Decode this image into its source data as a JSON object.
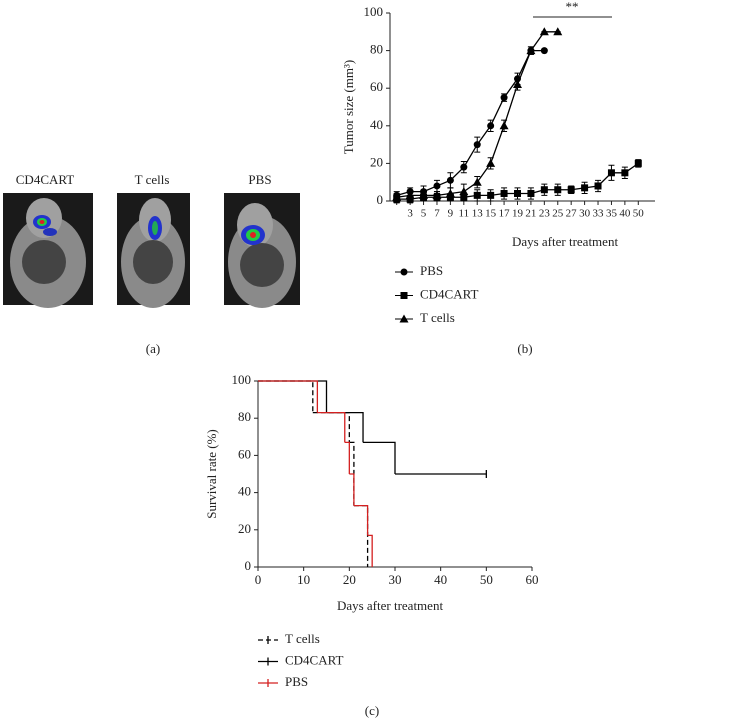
{
  "images": {
    "labels": [
      "CD4CART",
      "T cells",
      "PBS"
    ]
  },
  "panel_labels": [
    "(a)",
    "(b)",
    "(c)"
  ],
  "chart_data": [
    {
      "type": "line",
      "y_label": "Tumor size (mm³)",
      "x_label": "Days after treatment",
      "annotation": "**",
      "categories": [
        null,
        "3",
        "5",
        "7",
        "9",
        "11",
        "13",
        "15",
        "17",
        "19",
        "21",
        "23",
        "25",
        "27",
        "30",
        "33",
        "35",
        "40",
        "50"
      ],
      "ylim": [
        0,
        100
      ],
      "yticks": [
        0,
        20,
        40,
        60,
        80,
        100
      ],
      "series": [
        {
          "name": "PBS",
          "marker": "circle",
          "color": "#000000",
          "values": [
            3,
            5,
            5,
            8,
            11,
            18,
            30,
            40,
            55,
            65,
            80,
            80,
            null,
            null,
            null,
            null,
            null,
            null,
            null
          ],
          "errors": [
            2,
            2,
            3,
            3,
            4,
            3,
            4,
            3,
            2,
            3,
            2,
            0,
            null,
            null,
            null,
            null,
            null,
            null,
            null
          ]
        },
        {
          "name": "CD4CART",
          "marker": "square",
          "color": "#000000",
          "values": [
            1,
            1,
            2,
            2,
            2,
            2,
            3,
            3,
            4,
            4,
            4,
            6,
            6,
            6,
            7,
            8,
            15,
            15,
            20
          ],
          "errors": [
            2,
            2,
            2,
            2,
            2,
            2,
            3,
            3,
            3,
            3,
            3,
            3,
            3,
            2,
            3,
            3,
            4,
            3,
            2
          ]
        },
        {
          "name": "T cells",
          "marker": "triangle",
          "color": "#000000",
          "values": [
            2,
            3,
            3,
            3,
            4,
            5,
            10,
            20,
            40,
            62,
            80,
            90,
            90,
            null,
            null,
            null,
            null,
            null,
            null
          ],
          "errors": [
            2,
            2,
            2,
            2,
            3,
            4,
            3,
            3,
            3,
            3,
            2,
            0,
            0,
            null,
            null,
            null,
            null,
            null,
            null
          ]
        }
      ]
    },
    {
      "type": "step",
      "y_label": "Survival rate (%)",
      "x_label": "Days after treatment",
      "xlim": [
        0,
        60
      ],
      "xticks": [
        0,
        10,
        20,
        30,
        40,
        50,
        60
      ],
      "ylim": [
        0,
        100
      ],
      "yticks": [
        0,
        20,
        40,
        60,
        80,
        100
      ],
      "series": [
        {
          "name": "T cells",
          "color": "#000000",
          "dash": true,
          "x": [
            0,
            12,
            20,
            21,
            24
          ],
          "values": [
            100,
            83,
            67,
            33,
            0
          ]
        },
        {
          "name": "CD4CART",
          "color": "#000000",
          "dash": false,
          "x": [
            0,
            15,
            23,
            30,
            50
          ],
          "values": [
            100,
            83,
            67,
            50,
            50
          ]
        },
        {
          "name": "PBS",
          "color": "#d42020",
          "dash": false,
          "x": [
            0,
            13,
            19,
            20,
            21,
            24,
            25
          ],
          "values": [
            100,
            83,
            67,
            50,
            33,
            17,
            0
          ]
        }
      ]
    }
  ]
}
